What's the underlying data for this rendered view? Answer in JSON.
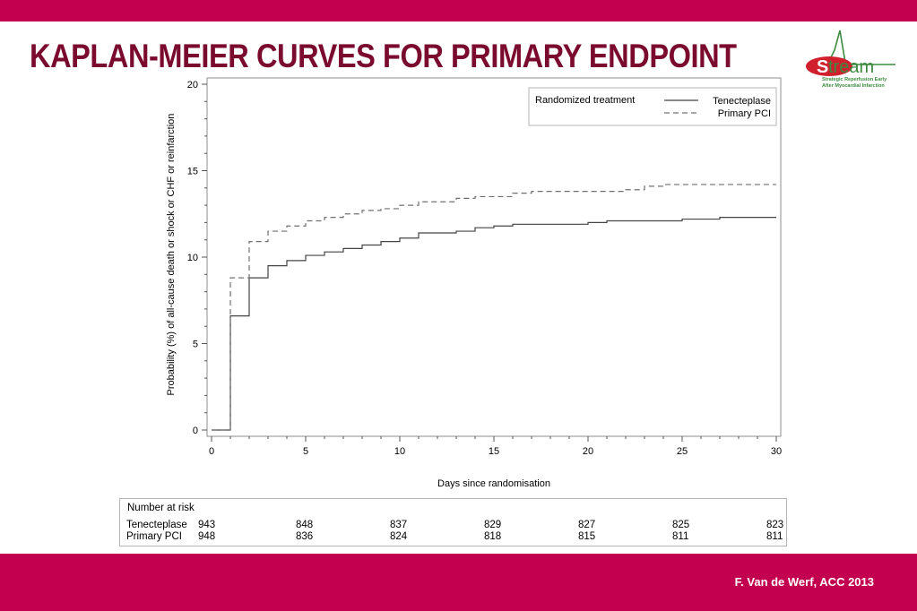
{
  "slide": {
    "title": "KAPLAN-MEIER CURVES FOR PRIMARY ENDPOINT",
    "footer": "F. Van de Werf, ACC 2013",
    "logo": {
      "word": "Stream",
      "tagline_lines": [
        "Strategic Reperfusion Early",
        "After Myocardial Infarction"
      ]
    },
    "colors": {
      "bar": "#c2004f",
      "title": "#7a0a2e",
      "logo_red": "#d0202e",
      "logo_green": "#3b8a3e"
    }
  },
  "chart_data": {
    "type": "line",
    "step": true,
    "xlabel": "Days since randomisation",
    "ylabel": "Probability (%) of all-cause death or shock or CHF or reinfarction",
    "xlim": [
      0,
      30
    ],
    "ylim": [
      0,
      20
    ],
    "x_ticks": [
      "0",
      "5",
      "10",
      "15",
      "20",
      "25",
      "30"
    ],
    "y_ticks": [
      "0",
      "5",
      "10",
      "15",
      "20"
    ],
    "grid": false,
    "legend": {
      "title": "Randomized treatment",
      "position": "top-right"
    },
    "series": [
      {
        "name": "Tenecteplase",
        "style": "solid",
        "points": [
          [
            0,
            0
          ],
          [
            1,
            6.6
          ],
          [
            2,
            8.8
          ],
          [
            3,
            9.5
          ],
          [
            4,
            9.8
          ],
          [
            5,
            10.1
          ],
          [
            6,
            10.3
          ],
          [
            7,
            10.5
          ],
          [
            8,
            10.7
          ],
          [
            9,
            10.9
          ],
          [
            10,
            11.1
          ],
          [
            11,
            11.4
          ],
          [
            13,
            11.5
          ],
          [
            14,
            11.7
          ],
          [
            15,
            11.8
          ],
          [
            16,
            11.9
          ],
          [
            20,
            12.0
          ],
          [
            21,
            12.1
          ],
          [
            25,
            12.2
          ],
          [
            27,
            12.3
          ],
          [
            30,
            12.3
          ]
        ]
      },
      {
        "name": "Primary PCI",
        "style": "dashed",
        "points": [
          [
            0,
            0
          ],
          [
            1,
            8.8
          ],
          [
            2,
            10.9
          ],
          [
            3,
            11.5
          ],
          [
            4,
            11.8
          ],
          [
            5,
            12.1
          ],
          [
            6,
            12.3
          ],
          [
            7,
            12.5
          ],
          [
            8,
            12.7
          ],
          [
            9,
            12.8
          ],
          [
            10,
            13.0
          ],
          [
            11,
            13.2
          ],
          [
            13,
            13.4
          ],
          [
            14,
            13.5
          ],
          [
            16,
            13.7
          ],
          [
            17,
            13.8
          ],
          [
            22,
            13.9
          ],
          [
            23,
            14.1
          ],
          [
            24,
            14.2
          ],
          [
            30,
            14.2
          ]
        ]
      }
    ],
    "risk_table": {
      "title": "Number at risk",
      "days": [
        0,
        5,
        10,
        15,
        20,
        25,
        30
      ],
      "rows": [
        {
          "label": "Tenecteplase",
          "values": [
            "943",
            "848",
            "837",
            "829",
            "827",
            "825",
            "823"
          ]
        },
        {
          "label": "Primary PCI",
          "values": [
            "948",
            "836",
            "824",
            "818",
            "815",
            "811",
            "811"
          ]
        }
      ]
    }
  }
}
